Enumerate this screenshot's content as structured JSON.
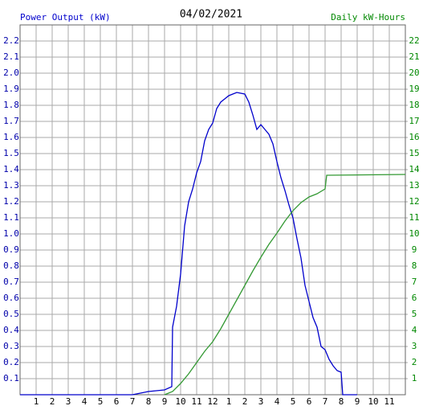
{
  "chart_data": {
    "type": "line",
    "title": "04/02/2021",
    "y_label": "Power Output (kW)",
    "y2_label": "Daily kW-Hours",
    "xlim": [
      0,
      24
    ],
    "xticks": [
      1,
      2,
      3,
      4,
      5,
      6,
      7,
      8,
      9,
      10,
      11,
      12,
      {
        "value": 13,
        "label": "1"
      },
      {
        "value": 14,
        "label": "2"
      },
      {
        "value": 15,
        "label": "3"
      },
      {
        "value": 16,
        "label": "4"
      },
      {
        "value": 17,
        "label": "5"
      },
      {
        "value": 18,
        "label": "6"
      },
      {
        "value": 19,
        "label": "7"
      },
      {
        "value": 20,
        "label": "8"
      },
      {
        "value": 21,
        "label": "9"
      },
      {
        "value": 22,
        "label": "10"
      },
      {
        "value": 23,
        "label": "11"
      }
    ],
    "ylim": [
      0,
      2.3
    ],
    "yticks": [
      0.1,
      0.2,
      0.3,
      0.4,
      0.5,
      0.6,
      0.7,
      0.8,
      0.9,
      {
        "value": 1,
        "label": "1.0"
      },
      1.1,
      1.2,
      1.3,
      1.4,
      1.5,
      1.6,
      1.7,
      1.8,
      1.9,
      {
        "value": 2,
        "label": "2.0"
      },
      2.1,
      2.2
    ],
    "y2lim": [
      0,
      23
    ],
    "y2ticks": [
      1,
      2,
      3,
      4,
      5,
      6,
      7,
      8,
      9,
      10,
      11,
      12,
      13,
      14,
      15,
      16,
      17,
      18,
      19,
      20,
      21,
      22
    ],
    "grid": true,
    "series": [
      {
        "name": "Power Output (kW)",
        "color": "#0000cc",
        "x": [
          0,
          7,
          8,
          9,
          9.45,
          9.5,
          9.75,
          10,
          10.25,
          10.5,
          10.75,
          11,
          11.25,
          11.5,
          11.75,
          12,
          12.25,
          12.5,
          12.75,
          13,
          13.25,
          13.5,
          14,
          14.25,
          14.5,
          14.75,
          15,
          15.25,
          15.5,
          15.75,
          16,
          16.25,
          16.5,
          16.75,
          17,
          17.25,
          17.5,
          17.75,
          18,
          18.25,
          18.5,
          18.75,
          19,
          19.25,
          19.5,
          19.75,
          20,
          20.1,
          21
        ],
        "values": [
          0,
          0,
          0.02,
          0.03,
          0.05,
          0.42,
          0.55,
          0.75,
          1.05,
          1.2,
          1.28,
          1.38,
          1.45,
          1.58,
          1.65,
          1.69,
          1.78,
          1.82,
          1.84,
          1.86,
          1.87,
          1.88,
          1.87,
          1.82,
          1.74,
          1.65,
          1.68,
          1.65,
          1.62,
          1.56,
          1.45,
          1.35,
          1.27,
          1.18,
          1.1,
          0.97,
          0.85,
          0.68,
          0.58,
          0.48,
          0.42,
          0.3,
          0.28,
          0.22,
          0.18,
          0.15,
          0.14,
          0,
          0
        ]
      },
      {
        "name": "Daily kW-Hours",
        "color": "#339933",
        "axis": "y2",
        "x": [
          9,
          9.5,
          10,
          10.5,
          11,
          11.5,
          12,
          12.5,
          13,
          13.5,
          14,
          14.5,
          15,
          15.5,
          16,
          16.5,
          17,
          17.5,
          18,
          18.5,
          19,
          19.1,
          24
        ],
        "values": [
          0,
          0.2,
          0.7,
          1.3,
          2.0,
          2.7,
          3.3,
          4.1,
          5.0,
          5.9,
          6.8,
          7.7,
          8.55,
          9.35,
          10.05,
          10.8,
          11.45,
          11.95,
          12.3,
          12.5,
          12.8,
          13.65,
          13.7
        ]
      }
    ]
  }
}
